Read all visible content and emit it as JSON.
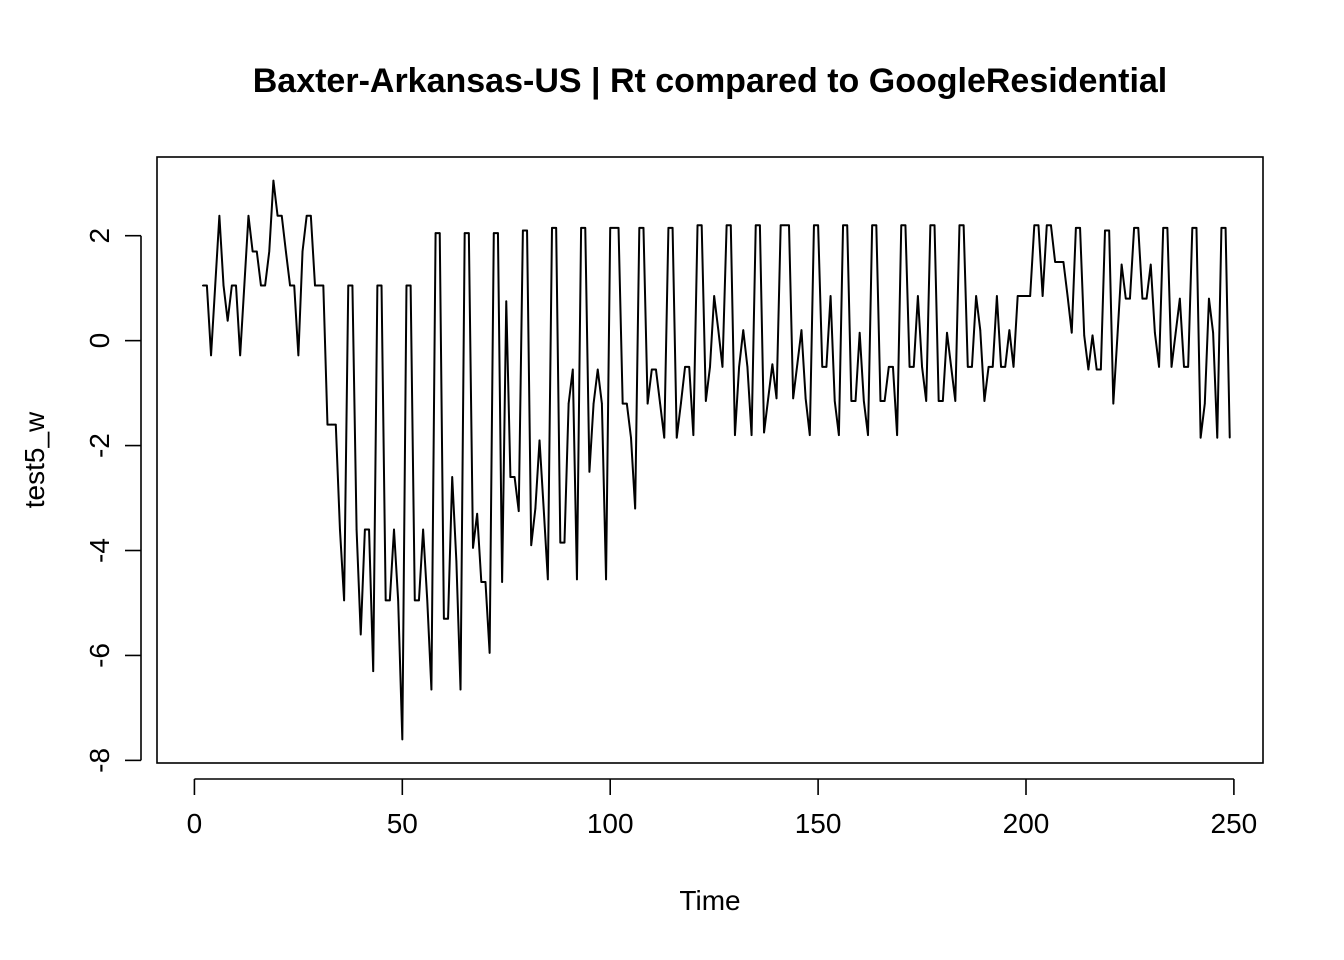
{
  "chart_data": {
    "type": "line",
    "title": "Baxter-Arkansas-US | Rt compared to GoogleResidential",
    "xlabel": "Time",
    "ylabel": "test5_w",
    "xlim": [
      -9,
      257
    ],
    "ylim": [
      -8.05,
      3.5
    ],
    "x_ticks": [
      0,
      50,
      100,
      150,
      200,
      250
    ],
    "y_ticks": [
      -8,
      -6,
      -4,
      -2,
      0,
      2
    ],
    "grid": false,
    "series": [
      {
        "x_start": 2,
        "values": [
          1.05,
          1.05,
          -0.28,
          1.05,
          2.38,
          1.05,
          0.38,
          1.05,
          1.05,
          -0.28,
          1.05,
          2.38,
          1.7,
          1.7,
          1.05,
          1.05,
          1.7,
          3.05,
          2.38,
          2.38,
          1.7,
          1.05,
          1.05,
          -0.28,
          1.7,
          2.38,
          2.38,
          1.05,
          1.05,
          1.05,
          -1.6,
          -1.6,
          -1.6,
          -3.6,
          -4.95,
          1.05,
          1.05,
          -3.6,
          -5.6,
          -3.6,
          -3.6,
          -6.3,
          1.05,
          1.05,
          -4.95,
          -4.95,
          -3.6,
          -4.95,
          -7.6,
          1.05,
          1.05,
          -4.95,
          -4.95,
          -3.6,
          -4.95,
          -6.65,
          2.05,
          2.05,
          -5.3,
          -5.3,
          -2.6,
          -4.2,
          -6.65,
          2.05,
          2.05,
          -3.95,
          -3.3,
          -4.6,
          -4.6,
          -5.95,
          2.05,
          2.05,
          -4.6,
          0.75,
          -2.6,
          -2.6,
          -3.25,
          2.1,
          2.1,
          -3.9,
          -3.2,
          -1.9,
          -3.2,
          -4.55,
          2.15,
          2.15,
          -3.85,
          -3.85,
          -1.2,
          -0.55,
          -4.55,
          2.15,
          2.15,
          -2.5,
          -1.2,
          -0.55,
          -1.2,
          -4.55,
          2.15,
          2.15,
          2.15,
          -1.2,
          -1.2,
          -1.85,
          -3.2,
          2.15,
          2.15,
          -1.2,
          -0.55,
          -0.55,
          -1.2,
          -1.85,
          2.15,
          2.15,
          -1.85,
          -1.2,
          -0.5,
          -0.5,
          -1.8,
          2.2,
          2.2,
          -1.15,
          -0.5,
          0.85,
          0.2,
          -0.5,
          2.2,
          2.2,
          -1.8,
          -0.5,
          0.2,
          -0.5,
          -1.8,
          2.2,
          2.2,
          -1.75,
          -1.1,
          -0.45,
          -1.1,
          2.2,
          2.2,
          2.2,
          -1.1,
          -0.45,
          0.2,
          -1.1,
          -1.8,
          2.2,
          2.2,
          -0.5,
          -0.5,
          0.85,
          -1.15,
          -1.8,
          2.2,
          2.2,
          -1.15,
          -1.15,
          0.15,
          -1.15,
          -1.8,
          2.2,
          2.2,
          -1.15,
          -1.15,
          -0.5,
          -0.5,
          -1.8,
          2.2,
          2.2,
          -0.5,
          -0.5,
          0.85,
          -0.5,
          -1.15,
          2.2,
          2.2,
          -1.15,
          -1.15,
          0.15,
          -0.5,
          -1.15,
          2.2,
          2.2,
          -0.5,
          -0.5,
          0.85,
          0.2,
          -1.15,
          -0.5,
          -0.5,
          0.85,
          -0.5,
          -0.5,
          0.2,
          -0.5,
          0.85,
          0.85,
          0.85,
          0.85,
          2.2,
          2.2,
          0.85,
          2.2,
          2.2,
          1.5,
          1.5,
          1.5,
          0.85,
          0.15,
          2.15,
          2.15,
          0.1,
          -0.55,
          0.1,
          -0.55,
          -0.55,
          2.1,
          2.1,
          -1.2,
          0.1,
          1.45,
          0.8,
          0.8,
          2.15,
          2.15,
          0.8,
          0.8,
          1.45,
          0.15,
          -0.5,
          2.15,
          2.15,
          -0.5,
          0.15,
          0.8,
          -0.5,
          -0.5,
          2.15,
          2.15,
          -1.85,
          -1.2,
          0.8,
          0.15,
          -1.85,
          2.15,
          2.15,
          -1.85
        ]
      }
    ]
  }
}
